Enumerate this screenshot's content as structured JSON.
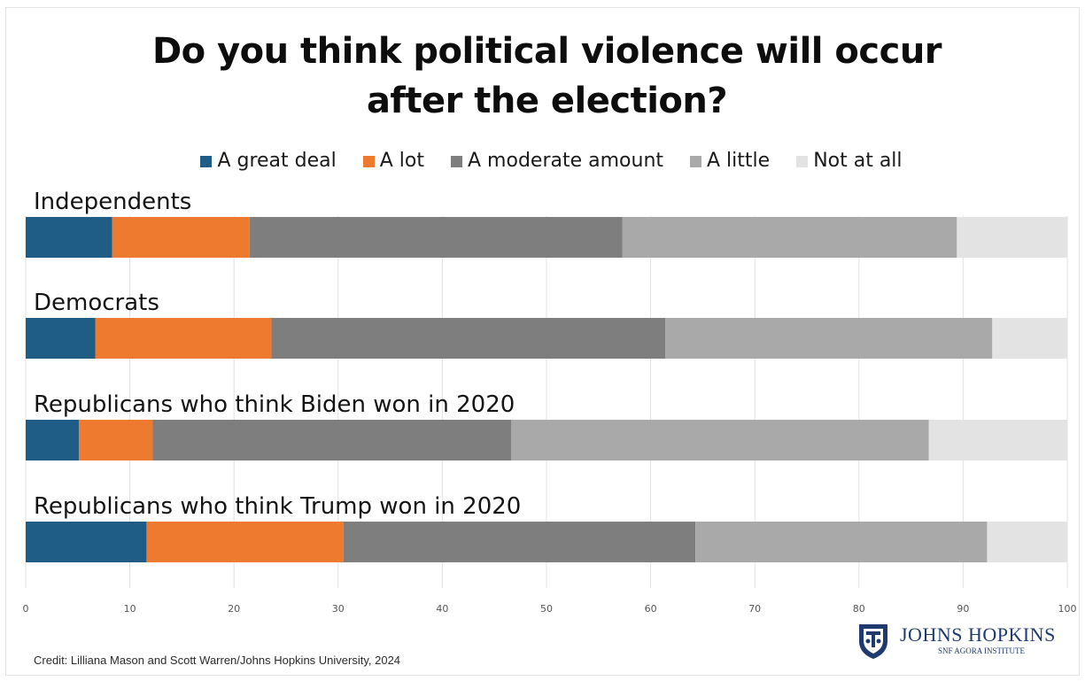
{
  "title": "Do you think political violence will occur after the election?",
  "legend": [
    {
      "label": "A great deal",
      "color": "#1f5c86"
    },
    {
      "label": "A lot",
      "color": "#ee7a30"
    },
    {
      "label": "A moderate amount",
      "color": "#7e7e7e"
    },
    {
      "label": "A little",
      "color": "#a9a9a9"
    },
    {
      "label": "Not at all",
      "color": "#e3e3e3"
    }
  ],
  "chart_data": {
    "type": "bar",
    "orientation": "horizontal",
    "stacked": true,
    "categories": [
      "Independents",
      "Democrats",
      "Republicans who think Biden won in 2020",
      "Republicans who think Trump won in 2020"
    ],
    "series": [
      {
        "name": "A great deal",
        "color": "#1f5c86",
        "values": [
          8.3,
          6.7,
          5.1,
          11.6
        ]
      },
      {
        "name": "A lot",
        "color": "#ee7a30",
        "values": [
          13.2,
          16.9,
          7.1,
          18.9
        ]
      },
      {
        "name": "A moderate amount",
        "color": "#7e7e7e",
        "values": [
          35.8,
          37.8,
          34.4,
          33.8
        ]
      },
      {
        "name": "A little",
        "color": "#a9a9a9",
        "values": [
          32.1,
          31.4,
          40.1,
          28.0
        ]
      },
      {
        "name": "Not at all",
        "color": "#e3e3e3",
        "values": [
          10.6,
          7.2,
          13.3,
          7.7
        ]
      }
    ],
    "x_ticks": [
      "0",
      "10",
      "20",
      "30",
      "40",
      "50",
      "60",
      "70",
      "80",
      "90",
      "100"
    ],
    "xlim": [
      0,
      100
    ],
    "grid": "vertical",
    "legend_position": "top"
  },
  "credit": "Credit: Lilliana Mason and Scott Warren/Johns Hopkins University, 2024",
  "logo": {
    "name": "JOHNS HOPKINS",
    "subtitle": "SNF AGORA INSTITUTE"
  }
}
